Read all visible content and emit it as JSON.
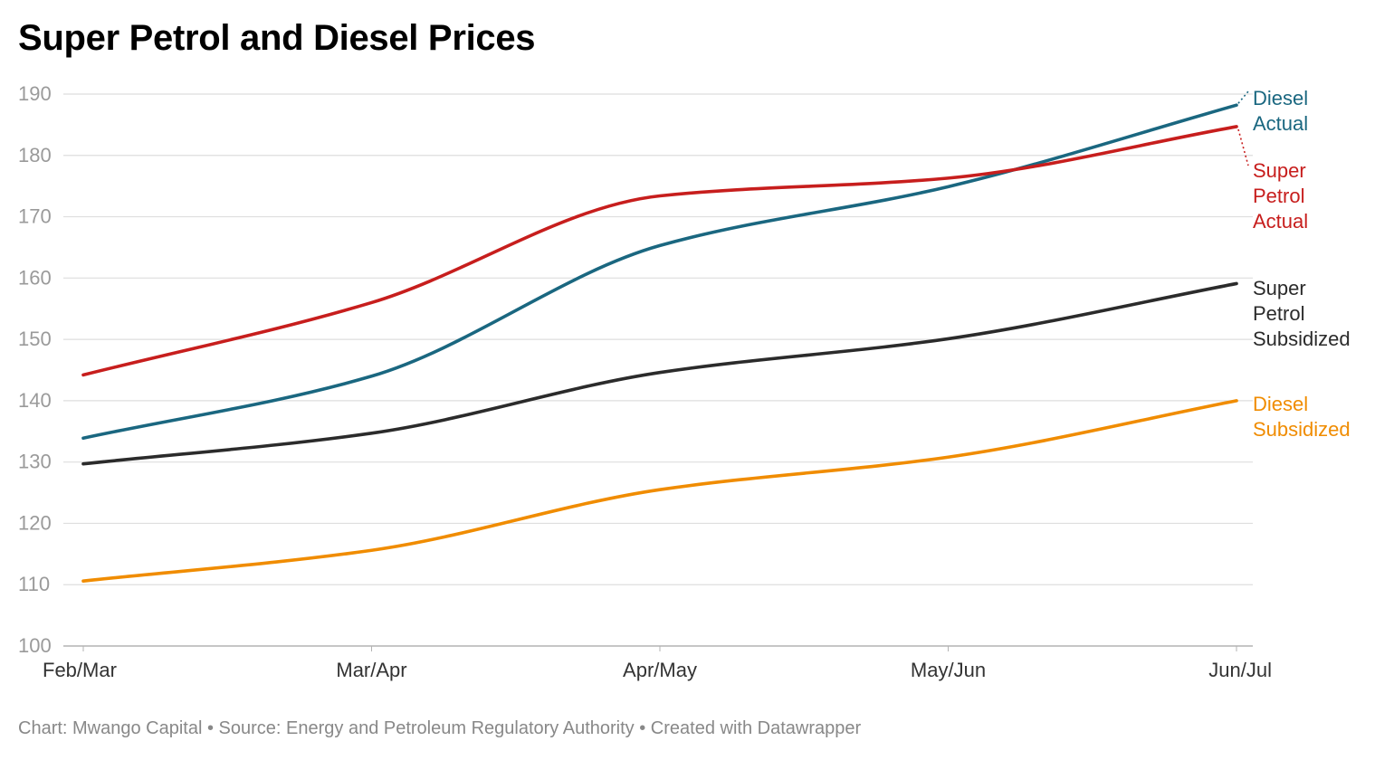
{
  "chart_data": {
    "type": "line",
    "title": "Super Petrol and Diesel Prices",
    "xlabel": "",
    "ylabel": "",
    "categories": [
      "Feb/Mar",
      "Mar/Apr",
      "Apr/May",
      "May/Jun",
      "Jun/Jul"
    ],
    "ylim": [
      100,
      190
    ],
    "yticks": [
      100,
      110,
      120,
      130,
      140,
      150,
      160,
      170,
      180,
      190
    ],
    "grid": true,
    "legend": "direct labels at right end of lines",
    "series": [
      {
        "key": "diesel_actual",
        "name": "Diesel Actual",
        "label_lines": [
          "Diesel",
          "Actual"
        ],
        "color": "#1a6780",
        "values": [
          133.9,
          144.0,
          165.3,
          174.9,
          188.2
        ]
      },
      {
        "key": "petrol_actual",
        "name": "Super Petrol Actual",
        "label_lines": [
          "Super",
          "Petrol",
          "Actual"
        ],
        "color": "#c71e1d",
        "values": [
          144.2,
          156.0,
          173.4,
          176.3,
          184.7
        ]
      },
      {
        "key": "petrol_subsidized",
        "name": "Super Petrol Subsidized",
        "label_lines": [
          "Super",
          "Petrol",
          "Subsidized"
        ],
        "color": "#2b2b2b",
        "values": [
          129.7,
          134.7,
          144.6,
          150.1,
          159.1
        ]
      },
      {
        "key": "diesel_subsidized",
        "name": "Diesel Subsidized",
        "label_lines": [
          "Diesel",
          "Subsidized"
        ],
        "color": "#f08c00",
        "values": [
          110.6,
          115.6,
          125.5,
          130.8,
          140.0
        ]
      }
    ]
  },
  "footer": {
    "text": "Chart: Mwango Capital • Source: Energy and Petroleum Regulatory Authority • Created with Datawrapper"
  }
}
